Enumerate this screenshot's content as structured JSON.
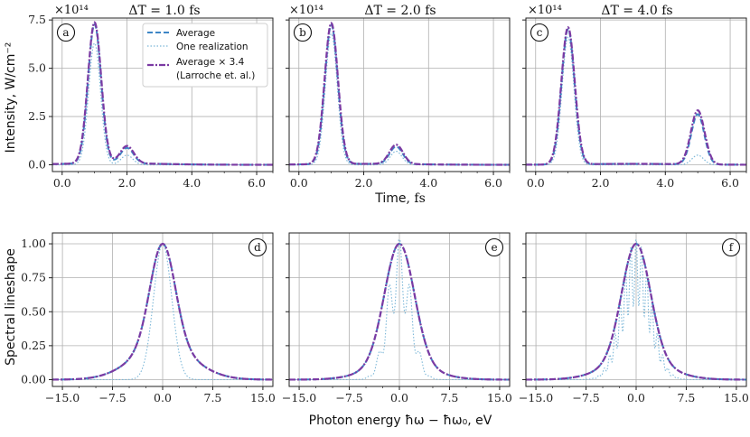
{
  "figure": {
    "time_xlabel_word": "Time",
    "time_xlabel_unit": ", fs",
    "energy_xlabel": "Photon energy ħω − ħω₀, eV",
    "intensity_ylabel": "Intensity, W/cm⁻²",
    "spectral_ylabel": "Spectral lineshape",
    "multiplier": "×10¹⁴"
  },
  "legend": {
    "average": "Average",
    "realization": "One realization",
    "larroche_line1": "Average × 3.4",
    "larroche_line2": "(Larroche et. al.)"
  },
  "colors": {
    "average": "#3d86c6",
    "realization": "#7cb7d8",
    "larroche": "#7b3aa3"
  },
  "chart_data": [
    {
      "type": "line",
      "panel": "a",
      "title": "ΔT = 1.0 fs",
      "xlim": [
        -0.3,
        6.5
      ],
      "ylim": [
        -0.35,
        7.6
      ],
      "xticks": [
        "0.0",
        "2.0",
        "4.0",
        "6.0"
      ],
      "yticks": [
        "0.0",
        "2.5",
        "5.0",
        "7.5"
      ],
      "grid": true,
      "peaks": [
        {
          "center": 1.0,
          "sigma": 0.2,
          "average": 7.2,
          "realization": 6.3,
          "larroche": 7.3
        },
        {
          "center": 2.0,
          "sigma": 0.2,
          "average": 0.8,
          "realization": 0.5,
          "larroche": 0.9
        }
      ],
      "floor": 0.08
    },
    {
      "type": "line",
      "panel": "b",
      "title": "ΔT = 2.0 fs",
      "xlim": [
        -0.3,
        6.5
      ],
      "ylim": [
        -0.35,
        7.6
      ],
      "xticks": [
        "0.0",
        "2.0",
        "4.0",
        "6.0"
      ],
      "yticks": [
        "0.0",
        "2.5",
        "5.0",
        "7.5"
      ],
      "grid": true,
      "peaks": [
        {
          "center": 1.0,
          "sigma": 0.2,
          "average": 7.2,
          "realization": 6.8,
          "larroche": 7.3
        },
        {
          "center": 3.0,
          "sigma": 0.2,
          "average": 0.9,
          "realization": 0.7,
          "larroche": 1.0
        }
      ],
      "floor": 0.05
    },
    {
      "type": "line",
      "panel": "c",
      "title": "ΔT = 4.0 fs",
      "xlim": [
        -0.3,
        6.5
      ],
      "ylim": [
        -0.35,
        7.6
      ],
      "xticks": [
        "0.0",
        "2.0",
        "4.0",
        "6.0"
      ],
      "yticks": [
        "0.0",
        "2.5",
        "5.0",
        "7.5"
      ],
      "grid": true,
      "peaks": [
        {
          "center": 1.0,
          "sigma": 0.2,
          "average": 7.0,
          "realization": 6.6,
          "larroche": 7.1
        },
        {
          "center": 5.0,
          "sigma": 0.2,
          "average": 2.6,
          "realization": 0.5,
          "larroche": 2.8
        }
      ],
      "floor": 0.05
    },
    {
      "type": "line",
      "panel": "d",
      "xlim": [
        -16.5,
        16.5
      ],
      "ylim": [
        -0.05,
        1.08
      ],
      "xticks": [
        "−15.0",
        "−7.5",
        "0.0",
        "7.5",
        "15.0"
      ],
      "yticks": [
        "0.00",
        "0.25",
        "0.50",
        "0.75",
        "1.00"
      ],
      "grid": true,
      "spectrum": {
        "center": 0.0,
        "core_width": 2.2,
        "wing_width": 4.5,
        "wing_amp": 0.25,
        "realization_width": 1.6,
        "modulation": 0.0,
        "peak": 1.0
      }
    },
    {
      "type": "line",
      "panel": "e",
      "xlim": [
        -16.5,
        16.5
      ],
      "ylim": [
        -0.05,
        1.08
      ],
      "xticks": [
        "−15.0",
        "−7.5",
        "0.0",
        "7.5",
        "15.0"
      ],
      "yticks": [
        "0.00",
        "0.25",
        "0.50",
        "0.75",
        "1.00"
      ],
      "grid": true,
      "spectrum": {
        "center": 0.0,
        "core_width": 2.6,
        "wing_width": 4.5,
        "wing_amp": 0.12,
        "realization_width": 2.0,
        "modulation": 1.0,
        "peak": 1.0
      }
    },
    {
      "type": "line",
      "panel": "f",
      "xlim": [
        -16.5,
        16.5
      ],
      "ylim": [
        -0.05,
        1.08
      ],
      "xticks": [
        "−15.0",
        "−7.5",
        "0.0",
        "7.5",
        "15.0"
      ],
      "yticks": [
        "0.00",
        "0.25",
        "0.50",
        "0.75",
        "1.00"
      ],
      "grid": true,
      "spectrum": {
        "center": 0.0,
        "core_width": 2.5,
        "wing_width": 4.5,
        "wing_amp": 0.15,
        "realization_width": 2.5,
        "modulation": 2.0,
        "peak": 1.0
      }
    }
  ]
}
